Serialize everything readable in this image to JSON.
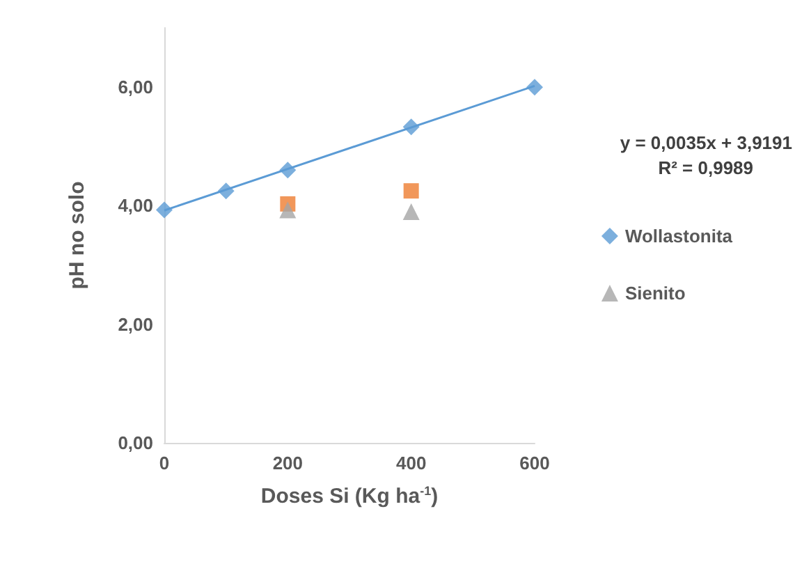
{
  "chart_data": {
    "type": "scatter",
    "xlabel": "Doses Si (Kg ha$^{-1}$)",
    "ylabel": "pH no solo",
    "xlim": [
      0,
      600
    ],
    "xticks": [
      0,
      200,
      400,
      600
    ],
    "ylim": [
      0,
      7
    ],
    "yticks": [
      {
        "value": 0,
        "label": "0,00"
      },
      {
        "value": 2,
        "label": "2,00"
      },
      {
        "value": 4,
        "label": "4,00"
      },
      {
        "value": 6,
        "label": "6,00"
      }
    ],
    "grid": false,
    "legend": "right",
    "annotations": [
      "y = 0,0035x + 3,9191",
      "R² = 0,9989"
    ],
    "series": [
      {
        "name": "Wollastonita",
        "color": "#5b9bd5",
        "marker": "diamond",
        "x": [
          0,
          100,
          200,
          400,
          600
        ],
        "values": [
          3.93,
          4.25,
          4.6,
          5.33,
          6.0
        ]
      },
      {
        "color": "#ed7d31",
        "marker": "square",
        "x": [
          200,
          400
        ],
        "values": [
          4.03,
          4.25
        ]
      },
      {
        "name": "Sienito",
        "color": "#a5a5a5",
        "marker": "triangle",
        "x": [
          200,
          400
        ],
        "values": [
          3.93,
          3.9
        ]
      },
      {
        "type": "line",
        "color": "#5b9bd5",
        "marker": "none",
        "x": [
          0,
          600
        ],
        "values": [
          3.92,
          6.02
        ]
      }
    ]
  }
}
